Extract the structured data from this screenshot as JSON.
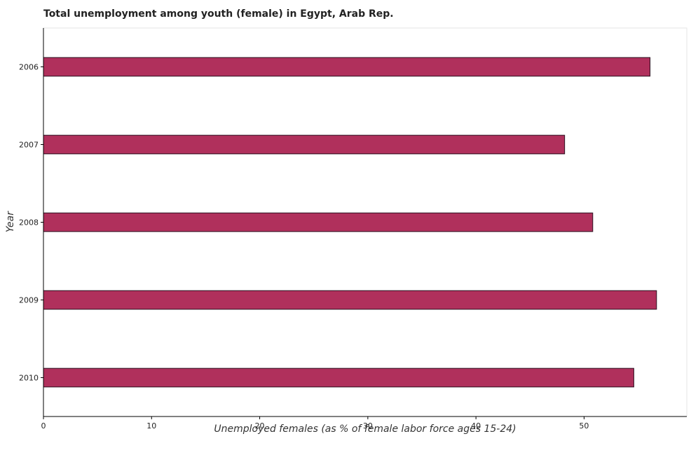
{
  "chart_data": {
    "type": "bar",
    "orientation": "horizontal",
    "title": "Total unemployment among youth (female) in Egypt, Arab Rep.",
    "xlabel": "Unemployed females (as % of female labor force ages 15-24)",
    "ylabel": "Year",
    "categories": [
      "2006",
      "2007",
      "2008",
      "2009",
      "2010"
    ],
    "values": [
      56.1,
      48.2,
      50.8,
      56.7,
      54.6
    ],
    "xlim": [
      0,
      59.5
    ],
    "xticks": [
      0,
      10,
      20,
      30,
      40,
      50
    ],
    "grid": false,
    "colors": {
      "bar_fill": "#b0305c",
      "bar_stroke": "#2b1020"
    }
  }
}
